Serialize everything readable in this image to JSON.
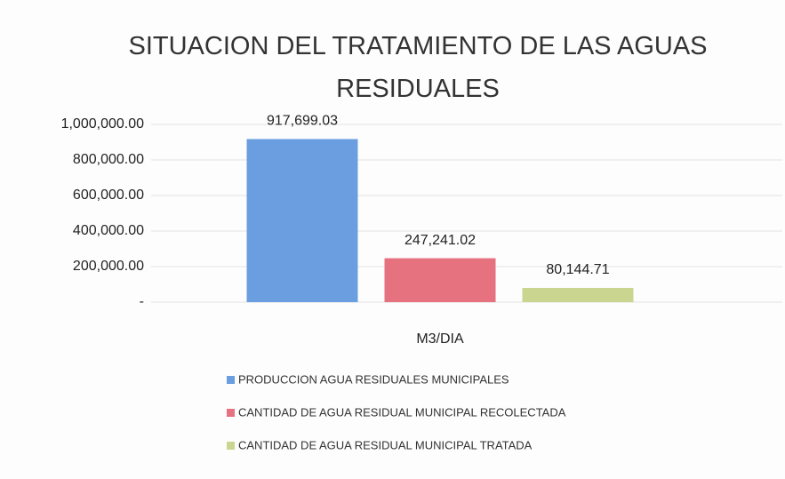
{
  "chart_data": {
    "type": "bar",
    "title": "SITUACION DEL TRATAMIENTO DE LAS AGUAS RESIDUALES",
    "categories": [
      "M3/DIA"
    ],
    "series": [
      {
        "name": "PRODUCCION AGUA RESIDUALES MUNICIPALES",
        "color": "#6b9ee0",
        "values": [
          917699.03
        ],
        "value_labels": [
          "917,699.03"
        ]
      },
      {
        "name": "CANTIDAD DE AGUA RESIDUAL MUNICIPAL RECOLECTADA",
        "color": "#e6717f",
        "values": [
          247241.02
        ],
        "value_labels": [
          "247,241.02"
        ]
      },
      {
        "name": "CANTIDAD DE AGUA RESIDUAL MUNICIPAL TRATADA",
        "color": "#cad590",
        "values": [
          80144.71
        ],
        "value_labels": [
          "80,144.71"
        ]
      }
    ],
    "ylim": [
      0,
      1000000
    ],
    "yticks": [
      {
        "value": 0,
        "label": "-"
      },
      {
        "value": 200000,
        "label": "200,000.00"
      },
      {
        "value": 400000,
        "label": "400,000.00"
      },
      {
        "value": 600000,
        "label": "600,000.00"
      },
      {
        "value": 800000,
        "label": "800,000.00"
      },
      {
        "value": 1000000,
        "label": "1,000,000.00"
      }
    ],
    "grid": true,
    "legend": "bottom"
  }
}
